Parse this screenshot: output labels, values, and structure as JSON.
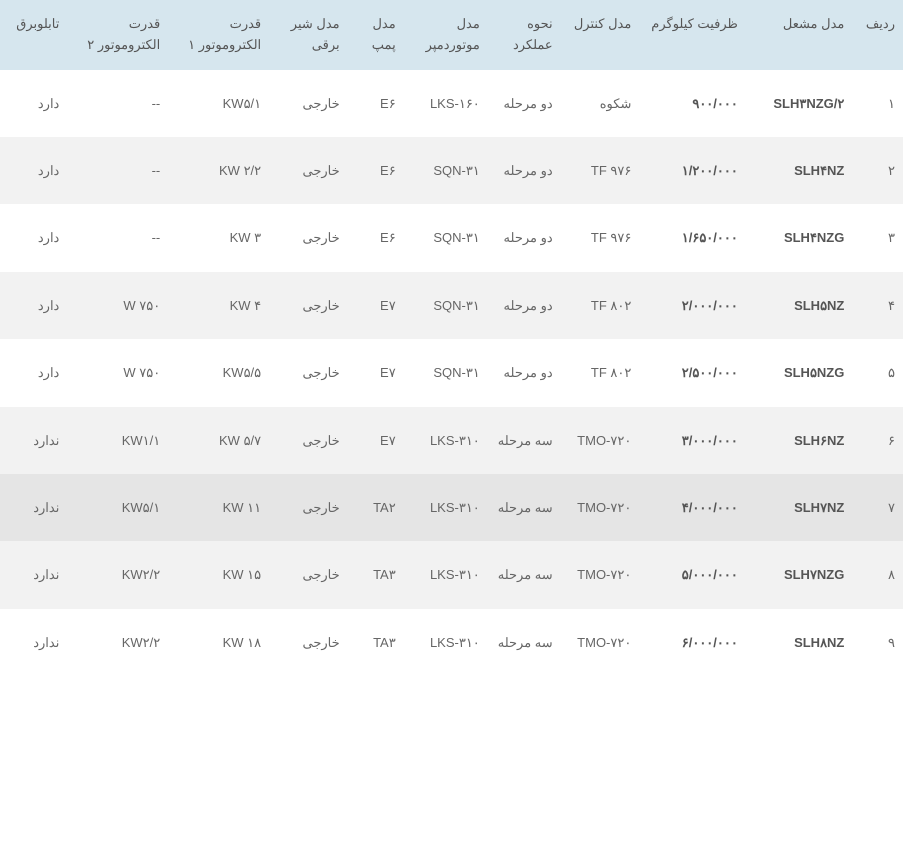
{
  "table": {
    "columns": [
      {
        "key": "radif",
        "label": "ردیف"
      },
      {
        "key": "model",
        "label": "مدل مشعل"
      },
      {
        "key": "capacity",
        "label": "ظرفیت کیلوگرم"
      },
      {
        "key": "control",
        "label": "مدل کنترل"
      },
      {
        "key": "mode",
        "label": "نحوه عملکرد"
      },
      {
        "key": "damper",
        "label": "مدل موتوردمپر"
      },
      {
        "key": "pump",
        "label": "مدل پمپ"
      },
      {
        "key": "valve",
        "label": "مدل شیر برقی"
      },
      {
        "key": "motor1",
        "label": "قدرت الکتروموتور ۱"
      },
      {
        "key": "motor2",
        "label": "قدرت الکتروموتور ۲"
      },
      {
        "key": "tablo",
        "label": "تابلوبرق"
      }
    ],
    "rows": [
      {
        "radif": "۱",
        "model": "SLH۳NZG/۲",
        "capacity": "۹۰۰/۰۰۰",
        "control": "شکوه",
        "mode": "دو مرحله",
        "damper": "LKS-۱۶۰",
        "pump": "E۶",
        "valve": "خارجی",
        "motor1": "KW۵/۱",
        "motor2": "--",
        "tablo": "دارد"
      },
      {
        "radif": "۲",
        "model": "SLH۴NZ",
        "capacity": "۱/۲۰۰/۰۰۰",
        "control": "TF ۹۷۶",
        "mode": "دو مرحله",
        "damper": "SQN-۳۱",
        "pump": "E۶",
        "valve": "خارجی",
        "motor1": "KW ۲/۲",
        "motor2": "--",
        "tablo": "دارد"
      },
      {
        "radif": "۳",
        "model": "SLH۴NZG",
        "capacity": "۱/۶۵۰/۰۰۰",
        "control": "TF ۹۷۶",
        "mode": "دو مرحله",
        "damper": "SQN-۳۱",
        "pump": "E۶",
        "valve": "خارجی",
        "motor1": "KW ۳",
        "motor2": "--",
        "tablo": "دارد"
      },
      {
        "radif": "۴",
        "model": "SLH۵NZ",
        "capacity": "۲/۰۰۰/۰۰۰",
        "control": "TF ۸۰۲",
        "mode": "دو مرحله",
        "damper": "SQN-۳۱",
        "pump": "E۷",
        "valve": "خارجی",
        "motor1": "KW ۴",
        "motor2": "W ۷۵۰",
        "tablo": "دارد"
      },
      {
        "radif": "۵",
        "model": "SLH۵NZG",
        "capacity": "۲/۵۰۰/۰۰۰",
        "control": "TF ۸۰۲",
        "mode": "دو مرحله",
        "damper": "SQN-۳۱",
        "pump": "E۷",
        "valve": "خارجی",
        "motor1": "KW۵/۵",
        "motor2": "W ۷۵۰",
        "tablo": "دارد"
      },
      {
        "radif": "۶",
        "model": "SLH۶NZ",
        "capacity": "۳/۰۰۰/۰۰۰",
        "control": "TMO-۷۲۰",
        "mode": "سه مرحله",
        "damper": "LKS-۳۱۰",
        "pump": "E۷",
        "valve": "خارجی",
        "motor1": "KW ۵/۷",
        "motor2": "KW۱/۱",
        "tablo": "ندارد"
      },
      {
        "radif": "۷",
        "model": "SLH۷NZ",
        "capacity": "۴/۰۰۰/۰۰۰",
        "control": "TMO-۷۲۰",
        "mode": "سه مرحله",
        "damper": "LKS-۳۱۰",
        "pump": "TA۲",
        "valve": "خارجی",
        "motor1": "KW ۱۱",
        "motor2": "KW۵/۱",
        "tablo": "ندارد"
      },
      {
        "radif": "۸",
        "model": "SLH۷NZG",
        "capacity": "۵/۰۰۰/۰۰۰",
        "control": "TMO-۷۲۰",
        "mode": "سه مرحله",
        "damper": "LKS-۳۱۰",
        "pump": "TA۳",
        "valve": "خارجی",
        "motor1": "KW ۱۵",
        "motor2": "KW۲/۲",
        "tablo": "ندارد"
      },
      {
        "radif": "۹",
        "model": "SLH۸NZ",
        "capacity": "۶/۰۰۰/۰۰۰",
        "control": "TMO-۷۲۰",
        "mode": "سه مرحله",
        "damper": "LKS-۳۱۰",
        "pump": "TA۳",
        "valve": "خارجی",
        "motor1": "KW ۱۸",
        "motor2": "KW۲/۲",
        "tablo": "ندارد"
      }
    ],
    "styling": {
      "header_bg": "#d6e6ee",
      "row_odd_bg": "#ffffff",
      "row_even_bg": "#f2f2f2",
      "row_highlight_bg": "#e5e5e5",
      "text_color": "#666",
      "header_text_color": "#555",
      "font_size": 13,
      "bold_columns": [
        "model",
        "capacity"
      ]
    }
  }
}
